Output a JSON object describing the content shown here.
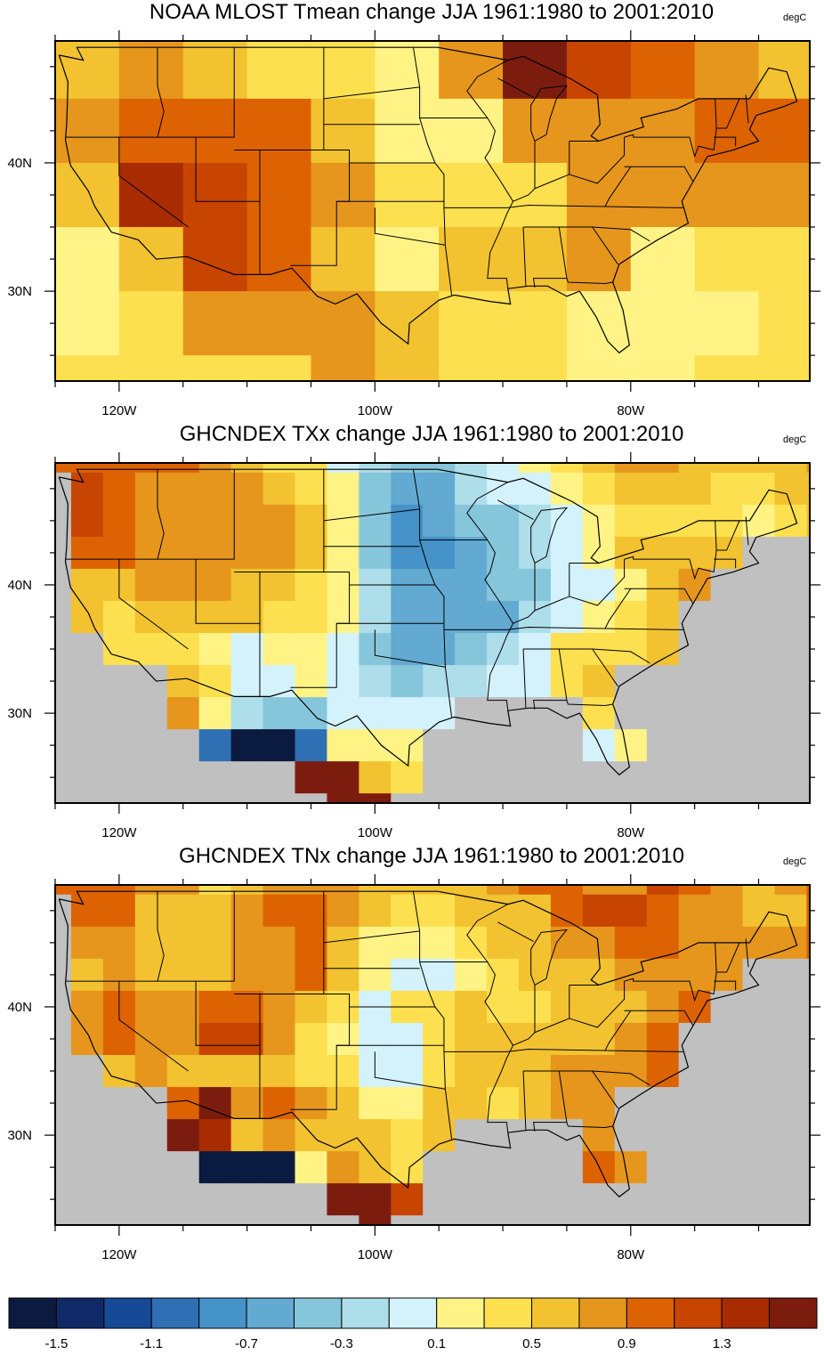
{
  "figure": {
    "missing_color": "#c0c0c0",
    "colorbar": {
      "levels": [
        -1.5,
        -1.3,
        -1.1,
        -0.9,
        -0.7,
        -0.5,
        -0.3,
        -0.1,
        0.1,
        0.3,
        0.5,
        0.7,
        0.9,
        1.1,
        1.3,
        1.5
      ],
      "colors": [
        "#0b1a3f",
        "#0f2a66",
        "#164a96",
        "#2f6fb4",
        "#4593c8",
        "#62aad1",
        "#86c6db",
        "#aedeea",
        "#d3f2fb",
        "#fff385",
        "#fde04f",
        "#f2c230",
        "#e6961c",
        "#dd6201",
        "#c84401",
        "#a82c00",
        "#7c1c0f"
      ],
      "labels": [
        "-1.5",
        "-1.1",
        "-0.7",
        "-0.3",
        "0.1",
        "0.5",
        "0.9",
        "1.3"
      ]
    }
  },
  "chart_data": [
    {
      "type": "heatmap",
      "title": "NOAA MLOST Tmean change JJA 1961:1980 to 2001:2010",
      "units": "degC",
      "resolution_deg": 5,
      "xlim": [
        -125,
        -66
      ],
      "ylim": [
        23,
        49.5
      ],
      "xticks": [
        -120,
        -100,
        -80
      ],
      "xticklabels": [
        "120W",
        "100W",
        "80W"
      ],
      "yticks": [
        30,
        40
      ],
      "yticklabels": [
        "30N",
        "40N"
      ],
      "lon_centers": [
        -122.5,
        -117.5,
        -112.5,
        -107.5,
        -102.5,
        -97.5,
        -92.5,
        -87.5,
        -82.5,
        -77.5,
        -72.5,
        -67.5
      ],
      "lat_centers": [
        47.5,
        42.5,
        37.5,
        32.5,
        27.5,
        22.5
      ],
      "values": [
        [
          0.6,
          0.8,
          0.6,
          0.4,
          0.4,
          0.2,
          0.8,
          1.6,
          1.2,
          1.0,
          0.8,
          0.6
        ],
        [
          0.8,
          1.0,
          1.0,
          1.0,
          0.6,
          0.2,
          0.2,
          0.8,
          0.8,
          0.8,
          1.0,
          1.0
        ],
        [
          0.6,
          1.4,
          1.2,
          1.0,
          0.8,
          0.4,
          0.4,
          0.4,
          0.8,
          0.8,
          0.8,
          0.8
        ],
        [
          0.2,
          0.6,
          1.2,
          1.0,
          0.6,
          0.2,
          0.6,
          0.6,
          0.8,
          0.2,
          0.4,
          0.4
        ],
        [
          0.2,
          0.4,
          0.8,
          0.8,
          0.8,
          0.6,
          0.4,
          0.4,
          0.2,
          0.2,
          0.2,
          0.4
        ],
        [
          0.4,
          0.4,
          0.4,
          0.4,
          0.8,
          0.6,
          0.4,
          0.4,
          0.2,
          0.2,
          0.4,
          0.4
        ]
      ]
    },
    {
      "type": "heatmap",
      "title": "GHCNDEX TXx change JJA 1961:1980 to 2001:2010",
      "units": "degC",
      "resolution_deg": 2.5,
      "xlim": [
        -125,
        -66
      ],
      "ylim": [
        23,
        49.5
      ],
      "xticks": [
        -120,
        -100,
        -80
      ],
      "xticklabels": [
        "120W",
        "100W",
        "80W"
      ],
      "yticks": [
        30,
        40
      ],
      "yticklabels": [
        "30N",
        "40N"
      ],
      "lon_centers": [
        -125,
        -122.5,
        -120,
        -117.5,
        -115,
        -112.5,
        -110,
        -107.5,
        -105,
        -102.5,
        -100,
        -97.5,
        -95,
        -92.5,
        -90,
        -87.5,
        -85,
        -82.5,
        -80,
        -77.5,
        -75,
        -72.5,
        -70,
        -67.5,
        -65
      ],
      "lat_centers": [
        50,
        47.5,
        45,
        42.5,
        40,
        37.5,
        35,
        32.5,
        30,
        27.5,
        25,
        22.5
      ],
      "values": [
        [
          1.0,
          1.0,
          1.0,
          1.0,
          1.0,
          0.8,
          0.6,
          0.4,
          0.4,
          0.0,
          -0.2,
          -0.4,
          -0.4,
          -0.2,
          0.0,
          0.2,
          0.4,
          0.6,
          0.8,
          0.8,
          0.6,
          0.6,
          0.6,
          0.6,
          0.8
        ],
        [
          null,
          1.2,
          1.0,
          0.8,
          0.8,
          0.8,
          0.8,
          0.6,
          0.4,
          0.2,
          -0.4,
          -0.6,
          -0.6,
          -0.2,
          0.0,
          0.0,
          0.2,
          0.4,
          0.6,
          0.6,
          0.6,
          0.4,
          0.4,
          0.6,
          0.6
        ],
        [
          null,
          1.2,
          1.0,
          0.8,
          0.8,
          0.8,
          0.8,
          0.8,
          0.6,
          0.2,
          -0.4,
          -0.8,
          -0.6,
          -0.4,
          -0.4,
          -0.2,
          0.0,
          0.2,
          0.4,
          0.4,
          0.4,
          0.4,
          0.2,
          0.4,
          0.6
        ],
        [
          null,
          1.0,
          1.0,
          0.8,
          0.8,
          0.8,
          0.8,
          0.8,
          0.6,
          0.2,
          -0.4,
          -0.8,
          -0.8,
          -0.6,
          -0.4,
          -0.2,
          0.0,
          0.2,
          0.6,
          0.6,
          0.6,
          0.6,
          null,
          null,
          null
        ],
        [
          null,
          0.6,
          0.6,
          0.8,
          0.8,
          0.8,
          0.6,
          0.6,
          0.4,
          0.2,
          -0.2,
          -0.6,
          -0.6,
          -0.6,
          -0.4,
          -0.4,
          0.0,
          0.0,
          0.2,
          0.6,
          0.8,
          null,
          null,
          null,
          null
        ],
        [
          null,
          0.6,
          0.4,
          0.6,
          0.6,
          0.6,
          0.6,
          0.4,
          0.4,
          0.2,
          -0.2,
          -0.6,
          -0.6,
          -0.6,
          -0.6,
          -0.2,
          0.0,
          0.2,
          0.4,
          0.6,
          null,
          null,
          null,
          null,
          null
        ],
        [
          null,
          null,
          0.4,
          0.4,
          0.4,
          0.2,
          0.0,
          0.2,
          0.2,
          0.0,
          -0.4,
          -0.6,
          -0.6,
          -0.4,
          -0.2,
          0.0,
          0.4,
          0.4,
          0.4,
          0.6,
          null,
          null,
          null,
          null,
          null
        ],
        [
          null,
          null,
          null,
          null,
          0.6,
          0.4,
          0.0,
          0.0,
          0.2,
          0.0,
          -0.2,
          -0.4,
          -0.2,
          -0.2,
          0.0,
          0.0,
          0.4,
          0.6,
          null,
          null,
          null,
          null,
          null,
          null,
          null
        ],
        [
          null,
          null,
          null,
          null,
          0.8,
          0.2,
          -0.2,
          -0.4,
          -0.4,
          0.0,
          0.0,
          0.0,
          0.0,
          null,
          null,
          null,
          null,
          0.4,
          null,
          null,
          null,
          null,
          null,
          null,
          null
        ],
        [
          null,
          null,
          null,
          null,
          null,
          -1.0,
          -1.6,
          -1.6,
          -1.0,
          0.2,
          0.2,
          0.2,
          null,
          null,
          null,
          null,
          null,
          0.0,
          0.2,
          null,
          null,
          null,
          null,
          null,
          null
        ],
        [
          null,
          null,
          null,
          null,
          null,
          null,
          null,
          null,
          1.6,
          1.6,
          0.6,
          0.4,
          null,
          null,
          null,
          null,
          null,
          null,
          null,
          null,
          null,
          null,
          null,
          null,
          null
        ],
        [
          null,
          null,
          null,
          null,
          null,
          null,
          null,
          null,
          null,
          1.6,
          1.6,
          null,
          null,
          null,
          null,
          null,
          null,
          null,
          null,
          null,
          null,
          null,
          null,
          null,
          null
        ]
      ]
    },
    {
      "type": "heatmap",
      "title": "GHCNDEX TNx change JJA 1961:1980 to 2001:2010",
      "units": "degC",
      "resolution_deg": 2.5,
      "xlim": [
        -125,
        -66
      ],
      "ylim": [
        23,
        49.5
      ],
      "xticks": [
        -120,
        -100,
        -80
      ],
      "xticklabels": [
        "120W",
        "100W",
        "80W"
      ],
      "yticks": [
        30,
        40
      ],
      "yticklabels": [
        "30N",
        "40N"
      ],
      "lon_centers": [
        -125,
        -122.5,
        -120,
        -117.5,
        -115,
        -112.5,
        -110,
        -107.5,
        -105,
        -102.5,
        -100,
        -97.5,
        -95,
        -92.5,
        -90,
        -87.5,
        -85,
        -82.5,
        -80,
        -77.5,
        -75,
        -72.5,
        -70,
        -67.5,
        -65
      ],
      "lat_centers": [
        50,
        47.5,
        45,
        42.5,
        40,
        37.5,
        35,
        32.5,
        30,
        27.5,
        25,
        22.5
      ],
      "values": [
        [
          1.0,
          1.0,
          1.0,
          0.8,
          0.8,
          0.4,
          0.6,
          0.8,
          0.8,
          0.8,
          0.6,
          0.6,
          0.6,
          0.6,
          0.8,
          1.0,
          1.0,
          0.8,
          0.8,
          1.2,
          1.0,
          0.8,
          0.6,
          0.8,
          1.0
        ],
        [
          null,
          1.0,
          1.0,
          0.6,
          0.6,
          0.6,
          0.8,
          1.0,
          1.0,
          0.8,
          0.6,
          0.4,
          0.4,
          0.6,
          0.6,
          0.6,
          1.0,
          1.2,
          1.2,
          1.0,
          0.8,
          0.8,
          0.6,
          0.6,
          1.0
        ],
        [
          null,
          0.8,
          0.8,
          0.6,
          0.6,
          0.6,
          0.8,
          0.8,
          1.0,
          0.6,
          0.2,
          0.2,
          0.2,
          0.4,
          0.6,
          0.6,
          0.8,
          0.8,
          1.0,
          1.0,
          0.8,
          0.8,
          0.8,
          0.8,
          1.0
        ],
        [
          null,
          0.6,
          0.8,
          0.6,
          0.6,
          0.6,
          0.8,
          0.8,
          1.0,
          0.6,
          0.2,
          0.0,
          0.0,
          0.2,
          0.4,
          0.6,
          0.6,
          0.6,
          0.8,
          0.8,
          0.8,
          0.8,
          null,
          null,
          null
        ],
        [
          null,
          0.8,
          1.0,
          0.8,
          0.8,
          1.0,
          1.0,
          0.8,
          0.6,
          0.4,
          0.0,
          0.4,
          0.4,
          0.6,
          0.4,
          0.4,
          0.6,
          0.6,
          0.6,
          0.8,
          1.0,
          null,
          null,
          null,
          null
        ],
        [
          null,
          0.8,
          1.0,
          0.8,
          0.8,
          1.2,
          1.2,
          0.8,
          0.4,
          0.2,
          0.0,
          0.0,
          0.4,
          0.6,
          0.6,
          0.6,
          0.6,
          0.6,
          0.8,
          1.0,
          null,
          null,
          null,
          null,
          null
        ],
        [
          null,
          null,
          0.6,
          0.8,
          0.6,
          0.6,
          0.6,
          0.6,
          0.4,
          0.4,
          0.0,
          0.0,
          0.4,
          0.6,
          0.6,
          0.6,
          0.8,
          0.8,
          0.8,
          1.0,
          null,
          null,
          null,
          null,
          null
        ],
        [
          null,
          null,
          null,
          null,
          1.0,
          1.6,
          0.8,
          1.0,
          0.8,
          0.6,
          0.2,
          0.2,
          0.6,
          0.6,
          0.4,
          0.6,
          0.8,
          0.8,
          null,
          null,
          null,
          null,
          null,
          null,
          null
        ],
        [
          null,
          null,
          null,
          null,
          1.6,
          1.4,
          0.6,
          0.8,
          0.6,
          0.6,
          0.6,
          0.4,
          0.6,
          null,
          null,
          null,
          null,
          0.8,
          null,
          null,
          null,
          null,
          null,
          null,
          null
        ],
        [
          null,
          null,
          null,
          null,
          null,
          -1.6,
          -1.6,
          -1.6,
          0.2,
          0.8,
          0.6,
          0.4,
          null,
          null,
          null,
          null,
          null,
          1.0,
          0.8,
          null,
          null,
          null,
          null,
          null,
          null
        ],
        [
          null,
          null,
          null,
          null,
          null,
          null,
          null,
          null,
          null,
          1.6,
          1.6,
          1.2,
          null,
          null,
          null,
          null,
          null,
          null,
          null,
          null,
          null,
          null,
          null,
          null,
          null
        ],
        [
          null,
          null,
          null,
          null,
          null,
          null,
          null,
          null,
          null,
          null,
          1.6,
          null,
          null,
          null,
          null,
          null,
          null,
          null,
          null,
          null,
          null,
          null,
          null,
          null,
          null
        ]
      ]
    }
  ]
}
